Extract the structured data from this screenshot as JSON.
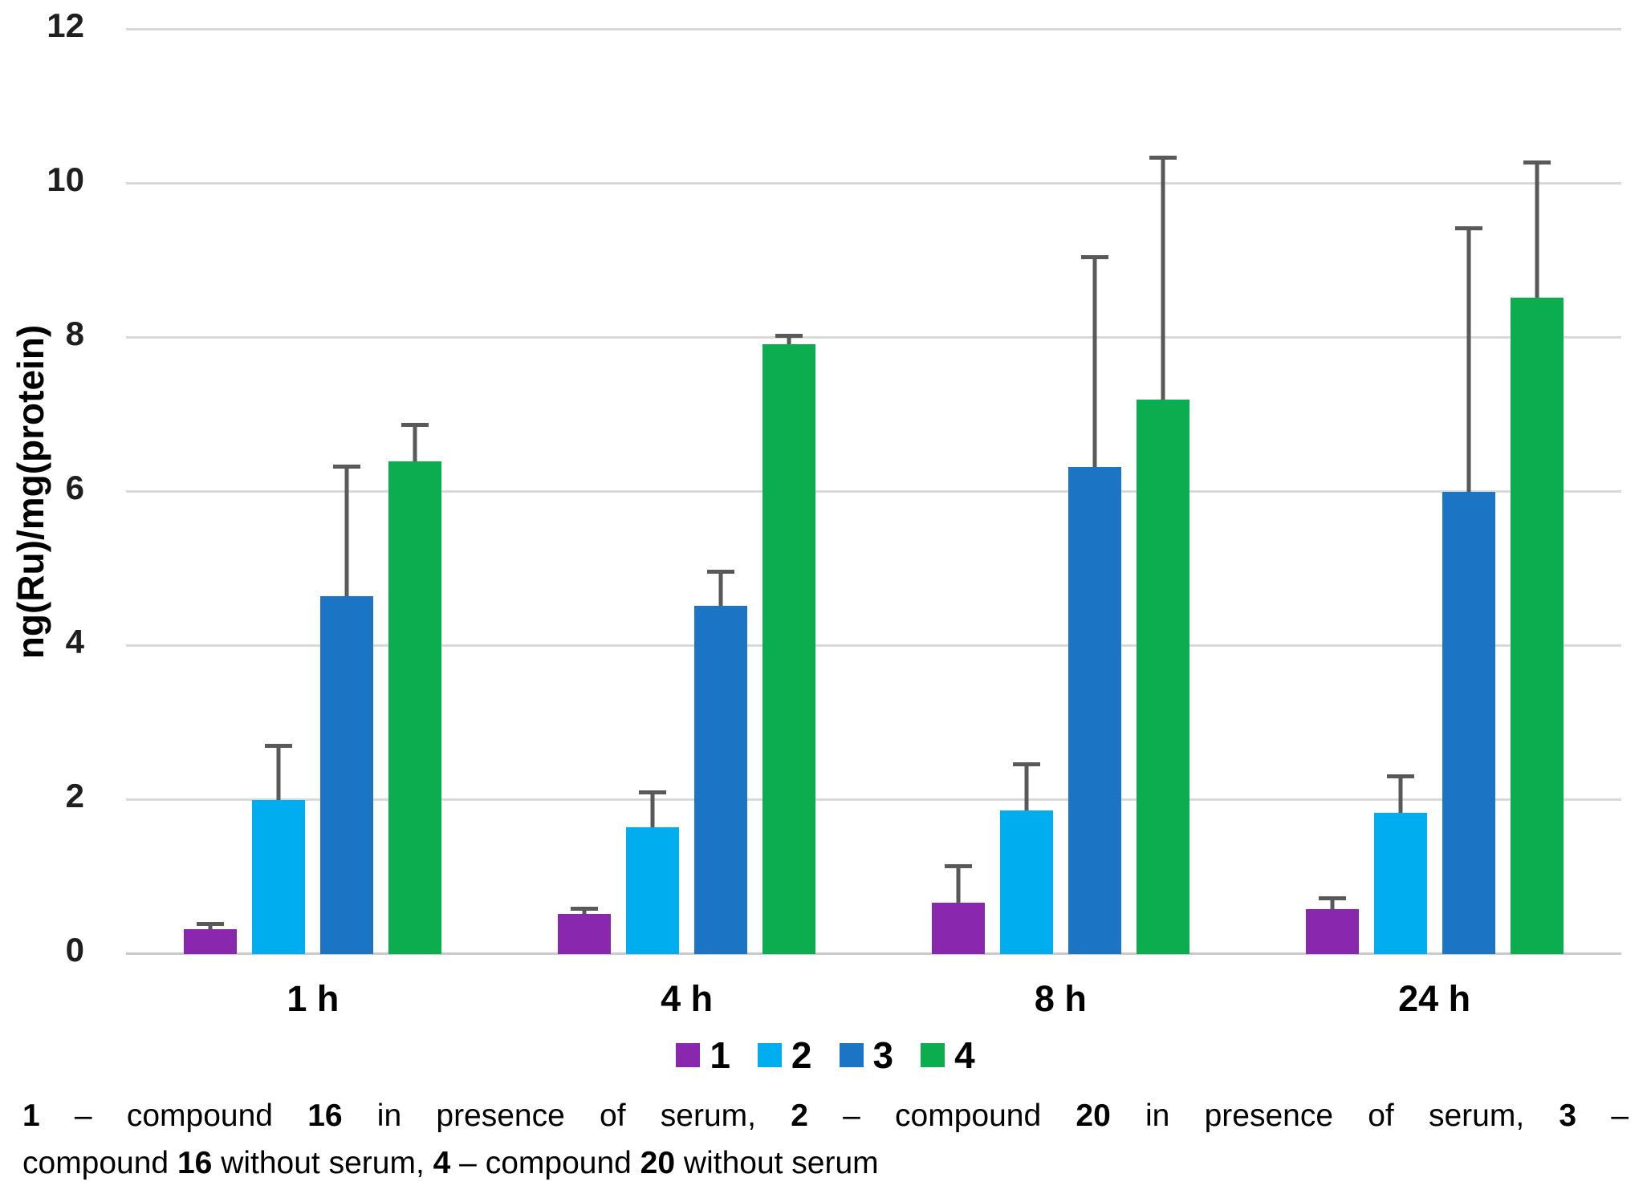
{
  "chart_data": {
    "type": "bar",
    "title": "",
    "xlabel": "",
    "ylabel": "ng(Ru)/mg(protein)",
    "ylim": [
      0,
      12
    ],
    "yticks": [
      0,
      2,
      4,
      6,
      8,
      10,
      12
    ],
    "grid": true,
    "legend_position": "bottom",
    "categories": [
      "1 h",
      "4 h",
      "8 h",
      "24 h"
    ],
    "series": [
      {
        "name": "1",
        "color": "#8928AE",
        "values": [
          0.32,
          0.52,
          0.67,
          0.58
        ],
        "errors_plus": [
          0.1,
          0.1,
          0.5,
          0.17
        ]
      },
      {
        "name": "2",
        "color": "#00AEEF",
        "values": [
          2.0,
          1.65,
          1.86,
          1.83
        ],
        "errors_plus": [
          0.73,
          0.48,
          0.63,
          0.5
        ]
      },
      {
        "name": "3",
        "color": "#1B74C4",
        "values": [
          4.65,
          4.52,
          6.32,
          6.0
        ],
        "errors_plus": [
          1.7,
          0.47,
          2.75,
          3.45
        ]
      },
      {
        "name": "4",
        "color": "#0CAD4E",
        "values": [
          6.4,
          7.92,
          7.2,
          8.52
        ],
        "errors_plus": [
          0.5,
          0.13,
          3.17,
          1.78
        ]
      }
    ],
    "error_bar_color": "#595959",
    "gridline_color": "#D9D9D9",
    "axis_line_color": "#C9C9C9",
    "legend_labels": [
      "1",
      "2",
      "3",
      "4"
    ]
  },
  "caption": {
    "line1_segments": [
      {
        "text": "1",
        "bold": true
      },
      {
        "text": " – compound ",
        "bold": false
      },
      {
        "text": "16",
        "bold": true
      },
      {
        "text": " in presence of serum, ",
        "bold": false
      },
      {
        "text": "2",
        "bold": true
      },
      {
        "text": " – compound ",
        "bold": false
      },
      {
        "text": "20",
        "bold": true
      },
      {
        "text": " in presence of serum, ",
        "bold": false
      },
      {
        "text": "3",
        "bold": true
      },
      {
        "text": " –",
        "bold": false
      }
    ],
    "line2_segments": [
      {
        "text": "compound ",
        "bold": false
      },
      {
        "text": "16",
        "bold": true
      },
      {
        "text": " without serum, ",
        "bold": false
      },
      {
        "text": "4",
        "bold": true
      },
      {
        "text": " – compound ",
        "bold": false
      },
      {
        "text": "20",
        "bold": true
      },
      {
        "text": " without serum",
        "bold": false
      }
    ]
  }
}
